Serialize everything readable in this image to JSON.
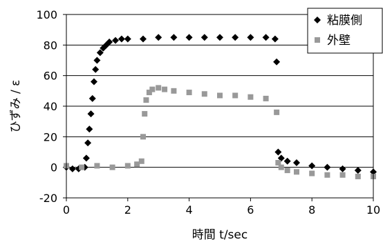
{
  "chart_data": {
    "type": "scatter",
    "title": "",
    "xlabel": "時間 t/sec",
    "ylabel": "ひずみ / ε",
    "xlim": [
      0,
      10
    ],
    "ylim": [
      -20,
      100
    ],
    "x_ticks": [
      "0",
      "2",
      "4",
      "6",
      "8",
      "10"
    ],
    "y_ticks": [
      "-20",
      "0",
      "20",
      "40",
      "60",
      "80",
      "100"
    ],
    "grid": "horizontal",
    "legend_position": "top-right",
    "series": [
      {
        "name": "粘膜側",
        "marker": "diamond",
        "color": "#000000",
        "x": [
          0.0,
          0.2,
          0.4,
          0.6,
          0.65,
          0.7,
          0.75,
          0.8,
          0.85,
          0.9,
          0.95,
          1.0,
          1.1,
          1.2,
          1.3,
          1.4,
          1.6,
          1.8,
          2.0,
          2.5,
          3.0,
          3.5,
          4.0,
          4.5,
          5.0,
          5.5,
          6.0,
          6.5,
          6.8,
          6.85,
          6.9,
          7.0,
          7.2,
          7.5,
          8.0,
          8.5,
          9.0,
          9.5,
          10.0
        ],
        "y": [
          0,
          -1,
          -1,
          0,
          6,
          16,
          25,
          35,
          45,
          56,
          64,
          70,
          75,
          78,
          80,
          82,
          83,
          84,
          84,
          84,
          85,
          85,
          85,
          85,
          85,
          85,
          85,
          85,
          84,
          69,
          10,
          6,
          4,
          3,
          1,
          0,
          -1,
          -2,
          -3
        ]
      },
      {
        "name": "外壁",
        "marker": "square",
        "color": "#999999",
        "x": [
          0.0,
          0.5,
          1.0,
          1.5,
          2.0,
          2.3,
          2.45,
          2.5,
          2.55,
          2.6,
          2.7,
          2.8,
          3.0,
          3.2,
          3.5,
          4.0,
          4.5,
          5.0,
          5.5,
          6.0,
          6.5,
          6.85,
          6.9,
          7.0,
          7.2,
          7.5,
          8.0,
          8.5,
          9.0,
          9.5,
          10.0
        ],
        "y": [
          1,
          0,
          1,
          0,
          1,
          2,
          4,
          20,
          35,
          44,
          49,
          51,
          52,
          51,
          50,
          49,
          48,
          47,
          47,
          46,
          45,
          36,
          3,
          0,
          -2,
          -3,
          -4,
          -5,
          -5,
          -6,
          -6
        ]
      }
    ]
  }
}
